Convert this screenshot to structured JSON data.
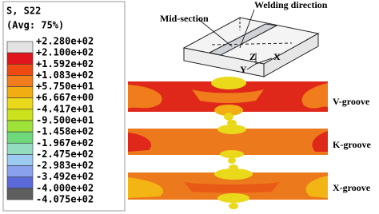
{
  "legend": {
    "title": "S, S22",
    "subtitle": "(Avg: 75%)",
    "labels": [
      "+2.280e+02",
      "+2.100e+02",
      "+1.592e+02",
      "+1.083e+02",
      "+5.750e+01",
      "+6.667e+00",
      "-4.417e+01",
      "-9.500e+01",
      "-1.458e+02",
      "-1.967e+02",
      "-2.475e+02",
      "-2.983e+02",
      "-3.492e+02",
      "-4.000e+02",
      "-4.075e+02"
    ],
    "colors": [
      "#e2e2e2",
      "#e0141a",
      "#ef4a12",
      "#f27d1c",
      "#f2ad12",
      "#ead81a",
      "#cce21c",
      "#9ee23a",
      "#6ed87a",
      "#94dcc0",
      "#9ccaf0",
      "#8aa2ee",
      "#5a6ad8",
      "#5e5e5e"
    ]
  },
  "diagram": {
    "welding_direction": "Welding direction",
    "mid_section": "Mid-section",
    "axis_z": "Z",
    "axis_y": "Y",
    "axis_x": "X"
  },
  "sections": [
    {
      "label": "V-groove"
    },
    {
      "label": "K-groove"
    },
    {
      "label": "X-groove"
    }
  ]
}
